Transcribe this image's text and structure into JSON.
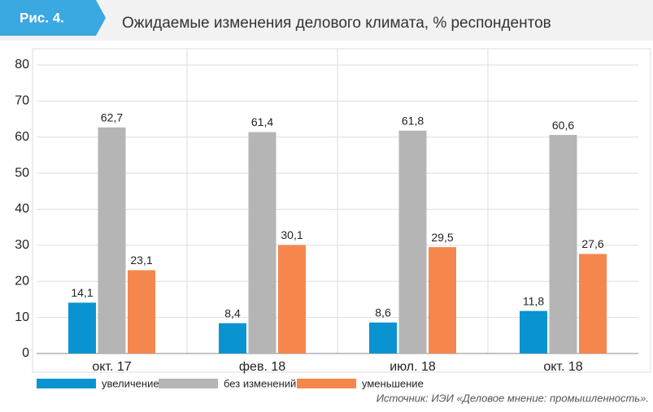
{
  "header": {
    "badge": "Рис. 4.",
    "title": "Ожидаемые изменения делового климата, % респондентов"
  },
  "chart_data": {
    "type": "bar",
    "categories": [
      "окт. 17",
      "фев. 18",
      "июл. 18",
      "окт. 18"
    ],
    "series": [
      {
        "name": "увеличение",
        "color": "#0a93d1",
        "values": [
          14.1,
          8.4,
          8.6,
          11.8
        ],
        "value_labels": [
          "14,1",
          "8,4",
          "8,6",
          "11,8"
        ]
      },
      {
        "name": "без изменений",
        "color": "#b5b5b5",
        "values": [
          62.7,
          61.4,
          61.8,
          60.6
        ],
        "value_labels": [
          "62,7",
          "61,4",
          "61,8",
          "60,6"
        ]
      },
      {
        "name": "уменьшение",
        "color": "#f5874c",
        "values": [
          23.1,
          30.1,
          29.5,
          27.6
        ],
        "value_labels": [
          "23,1",
          "30,1",
          "29,5",
          "27,6"
        ]
      }
    ],
    "ylim": [
      0,
      80
    ],
    "yticks": [
      0,
      10,
      20,
      30,
      40,
      50,
      60,
      70,
      80
    ],
    "grid": true
  },
  "source": "Источник: ИЭИ «Деловое мнение: промышленность»."
}
